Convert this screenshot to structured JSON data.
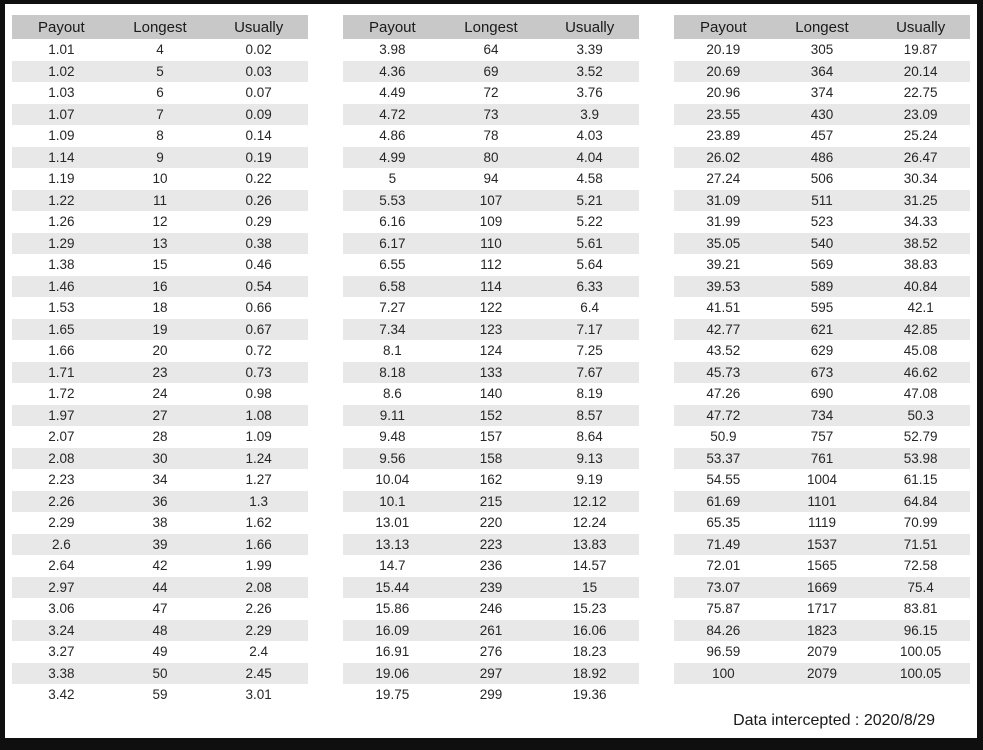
{
  "columns": [
    "Payout",
    "Longest",
    "Usually"
  ],
  "footer_note": "Data intercepted : 2020/8/29",
  "colors": {
    "frame": "#0f0f0f",
    "page_bg": "#ffffff",
    "header_bg": "#c8c8c8",
    "stripe_bg": "#e8e8e8",
    "text": "#262626"
  },
  "chart_data": [
    {
      "type": "table",
      "columns": [
        "Payout",
        "Longest",
        "Usually"
      ],
      "rows": [
        [
          "1.01",
          "4",
          "0.02"
        ],
        [
          "1.02",
          "5",
          "0.03"
        ],
        [
          "1.03",
          "6",
          "0.07"
        ],
        [
          "1.07",
          "7",
          "0.09"
        ],
        [
          "1.09",
          "8",
          "0.14"
        ],
        [
          "1.14",
          "9",
          "0.19"
        ],
        [
          "1.19",
          "10",
          "0.22"
        ],
        [
          "1.22",
          "11",
          "0.26"
        ],
        [
          "1.26",
          "12",
          "0.29"
        ],
        [
          "1.29",
          "13",
          "0.38"
        ],
        [
          "1.38",
          "15",
          "0.46"
        ],
        [
          "1.46",
          "16",
          "0.54"
        ],
        [
          "1.53",
          "18",
          "0.66"
        ],
        [
          "1.65",
          "19",
          "0.67"
        ],
        [
          "1.66",
          "20",
          "0.72"
        ],
        [
          "1.71",
          "23",
          "0.73"
        ],
        [
          "1.72",
          "24",
          "0.98"
        ],
        [
          "1.97",
          "27",
          "1.08"
        ],
        [
          "2.07",
          "28",
          "1.09"
        ],
        [
          "2.08",
          "30",
          "1.24"
        ],
        [
          "2.23",
          "34",
          "1.27"
        ],
        [
          "2.26",
          "36",
          "1.3"
        ],
        [
          "2.29",
          "38",
          "1.62"
        ],
        [
          "2.6",
          "39",
          "1.66"
        ],
        [
          "2.64",
          "42",
          "1.99"
        ],
        [
          "2.97",
          "44",
          "2.08"
        ],
        [
          "3.06",
          "47",
          "2.26"
        ],
        [
          "3.24",
          "48",
          "2.29"
        ],
        [
          "3.27",
          "49",
          "2.4"
        ],
        [
          "3.38",
          "50",
          "2.45"
        ],
        [
          "3.42",
          "59",
          "3.01"
        ]
      ]
    },
    {
      "type": "table",
      "columns": [
        "Payout",
        "Longest",
        "Usually"
      ],
      "rows": [
        [
          "3.98",
          "64",
          "3.39"
        ],
        [
          "4.36",
          "69",
          "3.52"
        ],
        [
          "4.49",
          "72",
          "3.76"
        ],
        [
          "4.72",
          "73",
          "3.9"
        ],
        [
          "4.86",
          "78",
          "4.03"
        ],
        [
          "4.99",
          "80",
          "4.04"
        ],
        [
          "5",
          "94",
          "4.58"
        ],
        [
          "5.53",
          "107",
          "5.21"
        ],
        [
          "6.16",
          "109",
          "5.22"
        ],
        [
          "6.17",
          "110",
          "5.61"
        ],
        [
          "6.55",
          "112",
          "5.64"
        ],
        [
          "6.58",
          "114",
          "6.33"
        ],
        [
          "7.27",
          "122",
          "6.4"
        ],
        [
          "7.34",
          "123",
          "7.17"
        ],
        [
          "8.1",
          "124",
          "7.25"
        ],
        [
          "8.18",
          "133",
          "7.67"
        ],
        [
          "8.6",
          "140",
          "8.19"
        ],
        [
          "9.11",
          "152",
          "8.57"
        ],
        [
          "9.48",
          "157",
          "8.64"
        ],
        [
          "9.56",
          "158",
          "9.13"
        ],
        [
          "10.04",
          "162",
          "9.19"
        ],
        [
          "10.1",
          "215",
          "12.12"
        ],
        [
          "13.01",
          "220",
          "12.24"
        ],
        [
          "13.13",
          "223",
          "13.83"
        ],
        [
          "14.7",
          "236",
          "14.57"
        ],
        [
          "15.44",
          "239",
          "15"
        ],
        [
          "15.86",
          "246",
          "15.23"
        ],
        [
          "16.09",
          "261",
          "16.06"
        ],
        [
          "16.91",
          "276",
          "18.23"
        ],
        [
          "19.06",
          "297",
          "18.92"
        ],
        [
          "19.75",
          "299",
          "19.36"
        ]
      ]
    },
    {
      "type": "table",
      "columns": [
        "Payout",
        "Longest",
        "Usually"
      ],
      "rows": [
        [
          "20.19",
          "305",
          "19.87"
        ],
        [
          "20.69",
          "364",
          "20.14"
        ],
        [
          "20.96",
          "374",
          "22.75"
        ],
        [
          "23.55",
          "430",
          "23.09"
        ],
        [
          "23.89",
          "457",
          "25.24"
        ],
        [
          "26.02",
          "486",
          "26.47"
        ],
        [
          "27.24",
          "506",
          "30.34"
        ],
        [
          "31.09",
          "511",
          "31.25"
        ],
        [
          "31.99",
          "523",
          "34.33"
        ],
        [
          "35.05",
          "540",
          "38.52"
        ],
        [
          "39.21",
          "569",
          "38.83"
        ],
        [
          "39.53",
          "589",
          "40.84"
        ],
        [
          "41.51",
          "595",
          "42.1"
        ],
        [
          "42.77",
          "621",
          "42.85"
        ],
        [
          "43.52",
          "629",
          "45.08"
        ],
        [
          "45.73",
          "673",
          "46.62"
        ],
        [
          "47.26",
          "690",
          "47.08"
        ],
        [
          "47.72",
          "734",
          "50.3"
        ],
        [
          "50.9",
          "757",
          "52.79"
        ],
        [
          "53.37",
          "761",
          "53.98"
        ],
        [
          "54.55",
          "1004",
          "61.15"
        ],
        [
          "61.69",
          "1101",
          "64.84"
        ],
        [
          "65.35",
          "1119",
          "70.99"
        ],
        [
          "71.49",
          "1537",
          "71.51"
        ],
        [
          "72.01",
          "1565",
          "72.58"
        ],
        [
          "73.07",
          "1669",
          "75.4"
        ],
        [
          "75.87",
          "1717",
          "83.81"
        ],
        [
          "84.26",
          "1823",
          "96.15"
        ],
        [
          "96.59",
          "2079",
          "100.05"
        ],
        [
          "100",
          "2079",
          "100.05"
        ]
      ]
    }
  ]
}
